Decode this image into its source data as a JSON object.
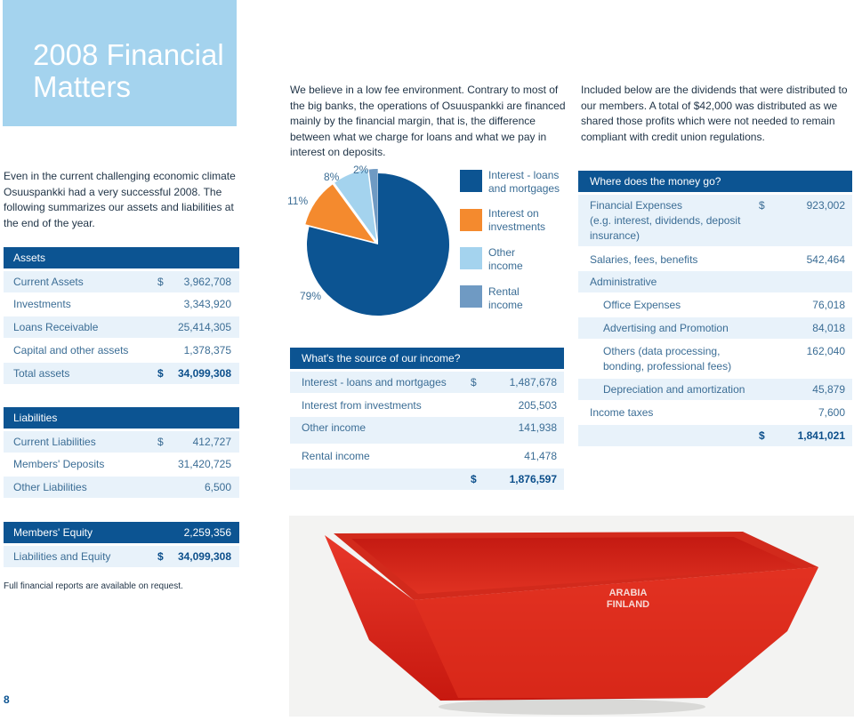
{
  "title": {
    "line1": "2008 Financial",
    "line2": "Matters"
  },
  "para_fee": "We believe in a low fee environment. Contrary to most of the big banks, the operations of Osuuspankki are financed mainly by the financial margin, that is, the difference between what we charge for loans and what we pay in interest on deposits.",
  "para_dividends": "Included below are the dividends that were distributed to our members. A total of $42,000 was distributed as we shared those profits which were not needed to remain compliant with credit union regulations.",
  "para_climate": "Even in the current challenging economic climate Osuuspankki had a very successful 2008. The following summarizes our assets and liabilities at the end of the year.",
  "assets": {
    "heading": "Assets",
    "rows": [
      {
        "label": "Current Assets",
        "currency": "$",
        "value": "3,962,708"
      },
      {
        "label": "Investments",
        "currency": "",
        "value": "3,343,920"
      },
      {
        "label": "Loans Receivable",
        "currency": "",
        "value": "25,414,305"
      },
      {
        "label": "Capital and other assets",
        "currency": "",
        "value": "1,378,375"
      }
    ],
    "total_label": "Total assets",
    "total_currency": "$",
    "total_value": "34,099,308"
  },
  "liabilities": {
    "heading": "Liabilities",
    "rows": [
      {
        "label": "Current Liabilities",
        "currency": "$",
        "value": "412,727"
      },
      {
        "label": "Members' Deposits",
        "currency": "",
        "value": "31,420,725"
      },
      {
        "label": "Other Liabilities",
        "currency": "",
        "value": "6,500"
      }
    ]
  },
  "equity": {
    "label": "Members' Equity",
    "value": "2,259,356",
    "total_label": "Liabilities and Equity",
    "total_currency": "$",
    "total_value": "34,099,308"
  },
  "note": "Full financial reports are available on request.",
  "page_number": "8",
  "chart_data": {
    "type": "pie",
    "categories": [
      "Interest - loans and mortgages",
      "Interest on investments",
      "Other income",
      "Rental income"
    ],
    "values": [
      79,
      11,
      8,
      2
    ],
    "labels": [
      "79%",
      "11%",
      "8%",
      "2%"
    ],
    "colors": [
      "#0c5492",
      "#f48a2e",
      "#a4d3ee",
      "#6f9ac3"
    ],
    "legend_placement": "right"
  },
  "legend": [
    {
      "l1": "Interest - loans",
      "l2": "and mortgages"
    },
    {
      "l1": "Interest on",
      "l2": "investments"
    },
    {
      "l1": "Other",
      "l2": "income"
    },
    {
      "l1": "Rental",
      "l2": "income"
    }
  ],
  "income": {
    "heading": "What's the source of our income?",
    "rows": [
      {
        "label": "Interest - loans and mortgages",
        "currency": "$",
        "value": "1,487,678"
      },
      {
        "label": "Interest from investments",
        "currency": "",
        "value": "205,503"
      },
      {
        "label": "Other income",
        "currency": "",
        "value": "141,938"
      },
      {
        "label": "Rental income",
        "currency": "",
        "value": "41,478"
      }
    ],
    "total_currency": "$",
    "total_value": "1,876,597"
  },
  "expenses": {
    "heading": "Where does the money go?",
    "financial_l1": "Financial Expenses",
    "financial_l2": "(e.g. interest, dividends, deposit",
    "financial_l3": "insurance)",
    "financial_currency": "$",
    "financial_value": "923,002",
    "salaries_label": "Salaries, fees, benefits",
    "salaries_value": "542,464",
    "admin_label": "Administrative",
    "office_label": "Office Expenses",
    "office_value": "76,018",
    "advert_label": "Advertising and Promotion",
    "advert_value": "84,018",
    "others_l1": "Others (data processing,",
    "others_l2": "bonding, professional fees)",
    "others_value": "162,040",
    "deprec_label": "Depreciation and amortization",
    "deprec_value": "45,879",
    "tax_label": "Income taxes",
    "tax_value": "7,600",
    "total_currency": "$",
    "total_value": "1,841,021"
  },
  "bowl_logo": {
    "l1": "ARABIA",
    "l2": "FINLAND"
  }
}
